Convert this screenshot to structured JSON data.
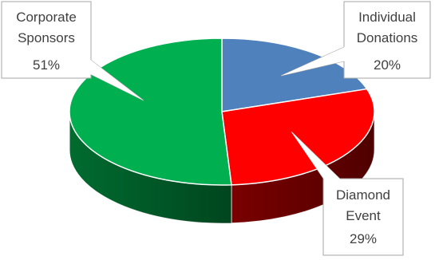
{
  "chart_data": {
    "type": "pie",
    "title": "",
    "style": "3d",
    "slices": [
      {
        "label": "Individual Donations",
        "value": 20,
        "value_label": "20%",
        "label_lines": [
          "Individual",
          "Donations"
        ],
        "color": "#4f81bd",
        "side_color": "#375a87"
      },
      {
        "label": "Diamond Event",
        "value": 29,
        "value_label": "29%",
        "label_lines": [
          "Diamond",
          "Event"
        ],
        "color": "#ff0000",
        "side_color": "#7a0000"
      },
      {
        "label": "Corporate Sponsors",
        "value": 51,
        "value_label": "51%",
        "label_lines": [
          "Corporate",
          "Sponsors"
        ],
        "color": "#00b050",
        "side_color": "#006b2f"
      }
    ]
  }
}
